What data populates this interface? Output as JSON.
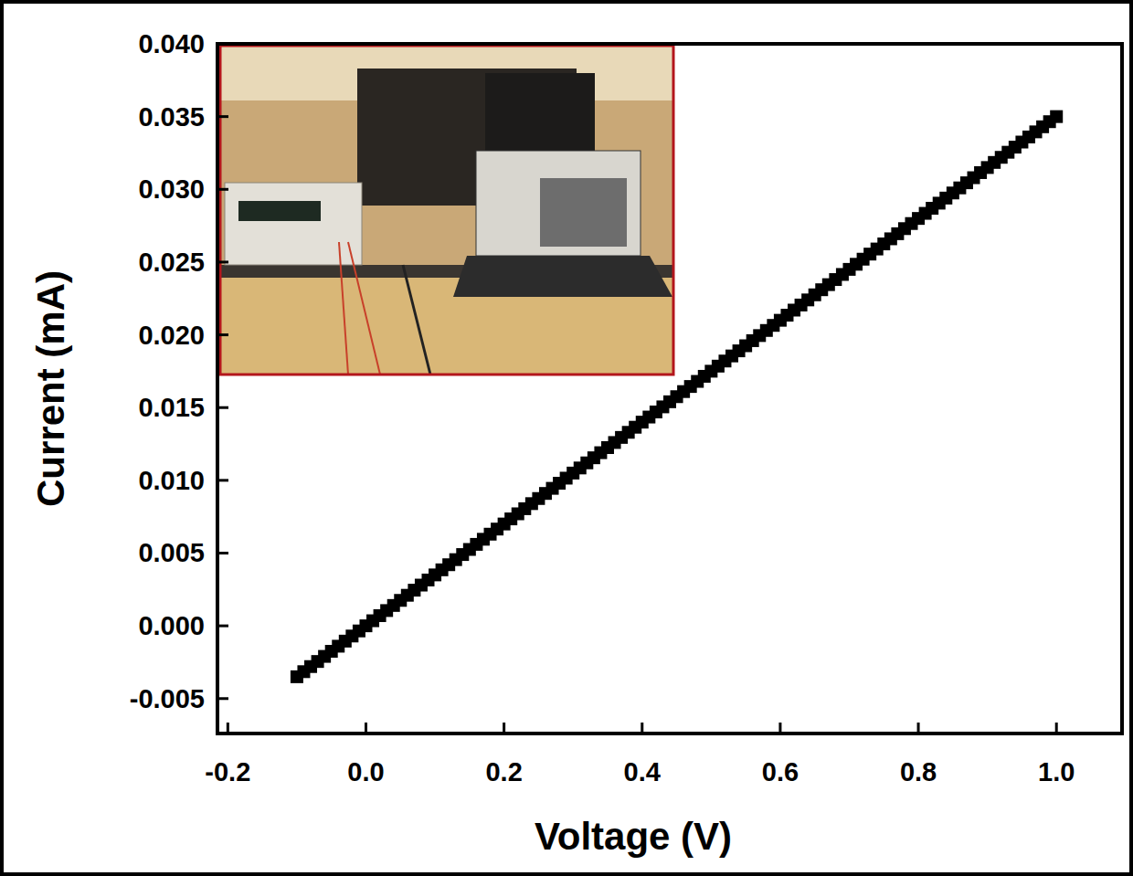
{
  "chart_data": {
    "type": "scatter",
    "xlabel": "Voltage (V)",
    "ylabel": "Current (mA)",
    "marker": "square",
    "color": "#000000",
    "grid": false,
    "xlim": [
      -0.215,
      1.095
    ],
    "ylim": [
      -0.0074,
      0.04
    ],
    "xticks": [
      -0.2,
      {
        "value": 0,
        "label": "0.0"
      },
      0.2,
      0.4,
      0.6,
      0.8,
      {
        "value": 1,
        "label": "1.0"
      }
    ],
    "yticks": [
      {
        "value": -0.005,
        "label": "-0.005"
      },
      {
        "value": 0,
        "label": "0.000"
      },
      {
        "value": 0.005,
        "label": "0.005"
      },
      {
        "value": 0.01,
        "label": "0.010"
      },
      {
        "value": 0.015,
        "label": "0.015"
      },
      {
        "value": 0.02,
        "label": "0.020"
      },
      {
        "value": 0.025,
        "label": "0.025"
      },
      {
        "value": 0.03,
        "label": "0.030"
      },
      {
        "value": 0.035,
        "label": "0.035"
      },
      {
        "value": 0.04,
        "label": "0.040"
      }
    ],
    "x": [
      -0.1,
      -0.09,
      -0.08,
      -0.07,
      -0.06,
      -0.05,
      -0.04,
      -0.03,
      -0.02,
      -0.01,
      0,
      0.01,
      0.02,
      0.03,
      0.04,
      0.05,
      0.06,
      0.07,
      0.08,
      0.09,
      0.1,
      0.11,
      0.12,
      0.13,
      0.14,
      0.15,
      0.16,
      0.17,
      0.18,
      0.19,
      0.2,
      0.21,
      0.22,
      0.23,
      0.24,
      0.25,
      0.26,
      0.27,
      0.28,
      0.29,
      0.3,
      0.31,
      0.32,
      0.33,
      0.34,
      0.35,
      0.36,
      0.37,
      0.38,
      0.39,
      0.4,
      0.41,
      0.42,
      0.43,
      0.44,
      0.45,
      0.46,
      0.47,
      0.48,
      0.49,
      0.5,
      0.51,
      0.52,
      0.53,
      0.54,
      0.55,
      0.56,
      0.57,
      0.58,
      0.59,
      0.6,
      0.61,
      0.62,
      0.63,
      0.64,
      0.65,
      0.66,
      0.67,
      0.68,
      0.69,
      0.7,
      0.71,
      0.72,
      0.73,
      0.74,
      0.75,
      0.76,
      0.77,
      0.78,
      0.79,
      0.8,
      0.81,
      0.82,
      0.83,
      0.84,
      0.85,
      0.86,
      0.87,
      0.88,
      0.89,
      0.9,
      0.91,
      0.92,
      0.93,
      0.94,
      0.95,
      0.96,
      0.97,
      0.98,
      0.99,
      1.0
    ],
    "values": [
      -0.0035,
      -0.00315,
      -0.0028,
      -0.00245,
      -0.0021,
      -0.00175,
      -0.0014,
      -0.00105,
      -0.0007,
      -0.00035,
      0,
      0.00035,
      0.0007,
      0.00105,
      0.0014,
      0.00175,
      0.0021,
      0.00245,
      0.0028,
      0.00315,
      0.0035,
      0.00385,
      0.0042,
      0.00455,
      0.0049,
      0.00525,
      0.0056,
      0.00595,
      0.0063,
      0.00665,
      0.007,
      0.00735,
      0.0077,
      0.00805,
      0.0084,
      0.00875,
      0.0091,
      0.00945,
      0.0098,
      0.01015,
      0.0105,
      0.01085,
      0.0112,
      0.01155,
      0.0119,
      0.01225,
      0.0126,
      0.01295,
      0.0133,
      0.01365,
      0.014,
      0.01435,
      0.0147,
      0.01505,
      0.0154,
      0.01575,
      0.0161,
      0.01645,
      0.0168,
      0.01715,
      0.0175,
      0.01785,
      0.0182,
      0.01855,
      0.0189,
      0.01925,
      0.0196,
      0.01995,
      0.0203,
      0.02065,
      0.021,
      0.02135,
      0.0217,
      0.02205,
      0.0224,
      0.02275,
      0.0231,
      0.02345,
      0.0238,
      0.02415,
      0.0245,
      0.02485,
      0.0252,
      0.02555,
      0.0259,
      0.02625,
      0.0266,
      0.02695,
      0.0273,
      0.02765,
      0.028,
      0.02835,
      0.0287,
      0.02905,
      0.0294,
      0.02975,
      0.0301,
      0.03045,
      0.0308,
      0.03115,
      0.0315,
      0.03185,
      0.0322,
      0.03255,
      0.0329,
      0.03325,
      0.0336,
      0.03395,
      0.0343,
      0.03465,
      0.035
    ]
  }
}
